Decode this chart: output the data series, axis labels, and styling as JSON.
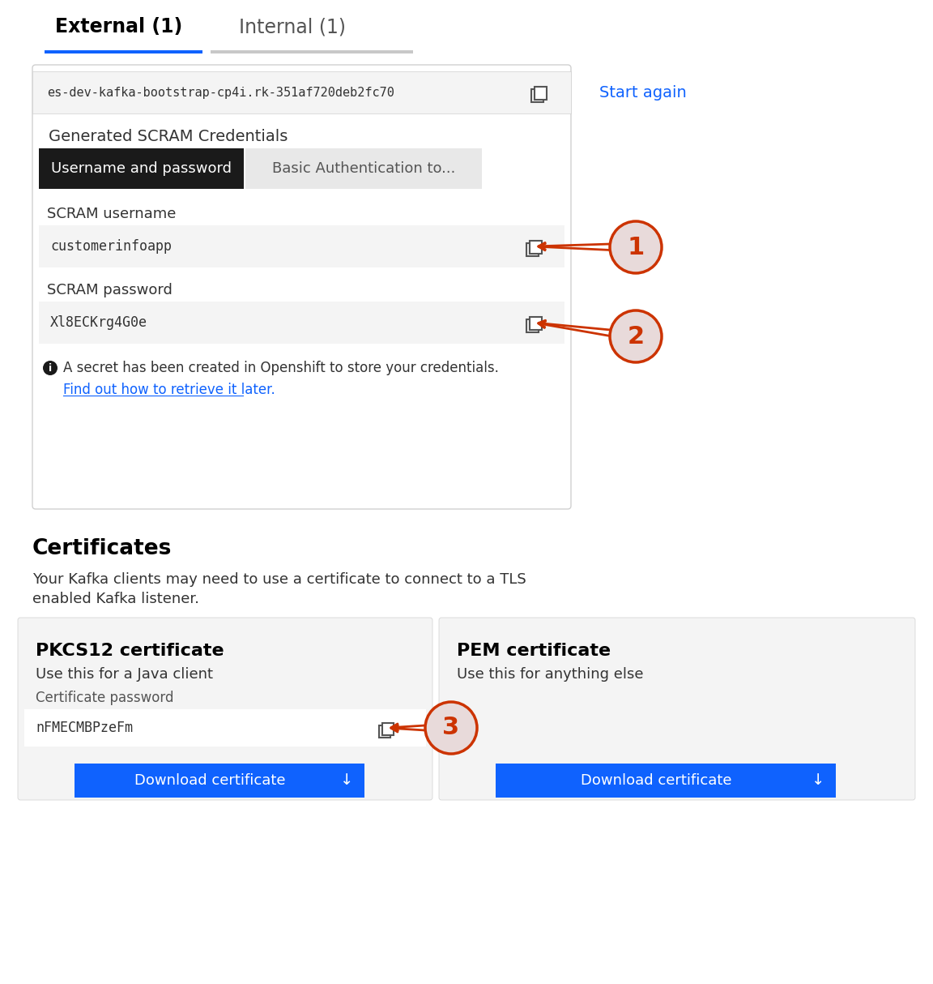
{
  "bg_color": "#ffffff",
  "tab_external": "External (1)",
  "tab_internal": "Internal (1)",
  "tab_line_active_color": "#0f62fe",
  "tab_line_inactive_color": "#c8c8c8",
  "bootstrap_text": "es-dev-kafka-bootstrap-cp4i.rk-351af720deb2fc70",
  "start_again_text": "Start again",
  "start_again_color": "#0f62fe",
  "generated_scram_label": "Generated SCRAM Credentials",
  "btn1_text": "Username and password",
  "btn2_text": "Basic Authentication to...",
  "scram_username_label": "SCRAM username",
  "scram_username_value": "customerinfoapp",
  "scram_password_label": "SCRAM password",
  "scram_password_value": "Xl8ECKrg4G0e",
  "info_text": "A secret has been created in Openshift to store your credentials.",
  "link_text": "Find out how to retrieve it later.",
  "link_color": "#0f62fe",
  "cert_title": "Certificates",
  "cert_desc1": "Your Kafka clients may need to use a certificate to connect to a TLS",
  "cert_desc2": "enabled Kafka listener.",
  "pkcs12_title": "PKCS12 certificate",
  "pkcs12_desc": "Use this for a Java client",
  "pkcs12_pass_label": "Certificate password",
  "pkcs12_pass_value": "nFMECMBPzeFm",
  "pem_title": "PEM certificate",
  "pem_desc": "Use this for anything else",
  "download_btn_color": "#0f62fe",
  "download_btn_text": "Download certificate",
  "annotation_color": "#cc3300",
  "annotation_fill": "#e8dada",
  "annotation_1": "1",
  "annotation_2": "2",
  "annotation_3": "3",
  "white": "#ffffff",
  "black": "#000000",
  "dark_gray": "#333333",
  "light_gray": "#f4f4f4"
}
